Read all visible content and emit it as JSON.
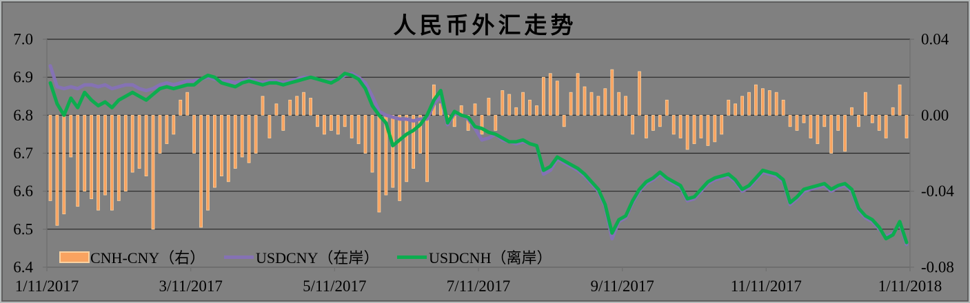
{
  "chart_data": {
    "type": "combo-bar-line",
    "title": "人民币外汇走势",
    "x_tick_labels": [
      "1/11/2017",
      "3/11/2017",
      "5/11/2017",
      "7/11/2017",
      "9/11/2017",
      "11/11/2017",
      "1/11/2018"
    ],
    "left_axis": {
      "min": 6.4,
      "max": 7.0,
      "tick_labels": [
        "7.0",
        "6.9",
        "6.8",
        "6.7",
        "6.6",
        "6.5",
        "6.4"
      ],
      "tick_values": [
        7.0,
        6.9,
        6.8,
        6.7,
        6.6,
        6.5,
        6.4
      ]
    },
    "right_axis": {
      "min": -0.08,
      "max": 0.04,
      "tick_labels": [
        "0.04",
        "0.00",
        "-0.04",
        "-0.08"
      ],
      "tick_values": [
        0.04,
        0.0,
        -0.04,
        -0.08
      ]
    },
    "grid": "horizontal",
    "legend_position": "inside-bottom-left",
    "series": [
      {
        "name": "CNH-CNY（右）",
        "type": "bar",
        "axis": "right",
        "values": [
          -0.045,
          -0.058,
          -0.052,
          -0.022,
          -0.048,
          -0.04,
          -0.044,
          -0.05,
          -0.042,
          -0.05,
          -0.045,
          -0.04,
          -0.03,
          -0.028,
          -0.032,
          -0.06,
          -0.02,
          -0.015,
          -0.01,
          0.008,
          0.012,
          -0.02,
          -0.059,
          -0.05,
          -0.038,
          -0.032,
          -0.035,
          -0.028,
          -0.022,
          -0.025,
          -0.02,
          0.01,
          -0.012,
          0.006,
          -0.008,
          0.008,
          0.01,
          0.012,
          0.009,
          -0.006,
          -0.01,
          -0.008,
          -0.01,
          -0.006,
          -0.012,
          -0.015,
          -0.02,
          -0.03,
          -0.051,
          -0.042,
          -0.038,
          -0.045,
          -0.035,
          -0.028,
          -0.02,
          -0.035,
          0.016,
          0.006,
          -0.005,
          -0.006,
          0.005,
          -0.008,
          0.006,
          -0.01,
          0.009,
          -0.008,
          0.013,
          0.011,
          0.004,
          0.012,
          0.008,
          0.005,
          0.02,
          0.022,
          0.018,
          -0.006,
          0.012,
          0.022,
          0.015,
          0.012,
          0.01,
          0.014,
          0.024,
          0.012,
          0.01,
          -0.01,
          0.023,
          -0.012,
          -0.008,
          -0.006,
          0.008,
          -0.01,
          -0.012,
          -0.018,
          -0.015,
          -0.012,
          -0.016,
          -0.014,
          -0.01,
          0.008,
          0.006,
          0.01,
          0.012,
          0.016,
          0.014,
          0.013,
          0.012,
          0.008,
          -0.006,
          -0.008,
          -0.004,
          -0.012,
          -0.015,
          -0.006,
          -0.02,
          -0.008,
          -0.019,
          0.004,
          -0.006,
          0.012,
          -0.004,
          -0.008,
          -0.012,
          0.004,
          0.016,
          -0.012
        ]
      },
      {
        "name": "USDCNY（在岸）",
        "type": "line",
        "axis": "left",
        "values": [
          6.93,
          6.875,
          6.87,
          6.875,
          6.87,
          6.88,
          6.88,
          6.875,
          6.88,
          6.87,
          6.875,
          6.88,
          6.88,
          6.87,
          6.865,
          6.87,
          6.88,
          6.885,
          6.88,
          6.885,
          6.89,
          6.89,
          6.895,
          6.9,
          6.895,
          6.89,
          6.89,
          6.885,
          6.89,
          6.895,
          6.89,
          6.885,
          6.89,
          6.89,
          6.885,
          6.89,
          6.895,
          6.9,
          6.9,
          6.895,
          6.89,
          6.89,
          6.895,
          6.905,
          6.91,
          6.9,
          6.885,
          6.85,
          6.81,
          6.8,
          6.795,
          6.79,
          6.79,
          6.785,
          6.79,
          6.79,
          6.83,
          6.85,
          6.775,
          6.805,
          6.8,
          6.79,
          6.765,
          6.735,
          6.74,
          6.75,
          6.735,
          6.73,
          6.725,
          6.73,
          6.725,
          6.72,
          6.645,
          6.655,
          6.685,
          6.675,
          6.665,
          6.655,
          6.64,
          6.62,
          6.6,
          6.56,
          6.475,
          6.52,
          6.53,
          6.57,
          6.6,
          6.62,
          6.63,
          6.645,
          6.63,
          6.62,
          6.61,
          6.575,
          6.58,
          6.6,
          6.62,
          6.63,
          6.635,
          6.64,
          6.625,
          6.6,
          6.61,
          6.63,
          6.65,
          6.645,
          6.64,
          6.625,
          6.565,
          6.58,
          6.6,
          6.605,
          6.61,
          6.615,
          6.6,
          6.61,
          6.615,
          6.6,
          6.55,
          6.53,
          6.52,
          6.5,
          6.48,
          6.49,
          6.515,
          6.46
        ]
      },
      {
        "name": "USDCNH（离岸）",
        "type": "line",
        "axis": "left",
        "values": [
          6.885,
          6.83,
          6.8,
          6.845,
          6.82,
          6.86,
          6.84,
          6.825,
          6.835,
          6.82,
          6.84,
          6.85,
          6.86,
          6.85,
          6.84,
          6.855,
          6.87,
          6.875,
          6.87,
          6.875,
          6.88,
          6.88,
          6.895,
          6.905,
          6.9,
          6.885,
          6.88,
          6.875,
          6.885,
          6.89,
          6.885,
          6.88,
          6.885,
          6.885,
          6.88,
          6.885,
          6.89,
          6.895,
          6.9,
          6.895,
          6.89,
          6.885,
          6.895,
          6.91,
          6.905,
          6.895,
          6.87,
          6.825,
          6.8,
          6.78,
          6.72,
          6.735,
          6.75,
          6.76,
          6.775,
          6.8,
          6.84,
          6.865,
          6.78,
          6.81,
          6.8,
          6.795,
          6.77,
          6.765,
          6.755,
          6.75,
          6.74,
          6.73,
          6.73,
          6.735,
          6.725,
          6.72,
          6.655,
          6.665,
          6.69,
          6.68,
          6.67,
          6.66,
          6.645,
          6.625,
          6.605,
          6.565,
          6.49,
          6.525,
          6.535,
          6.575,
          6.605,
          6.625,
          6.635,
          6.65,
          6.635,
          6.625,
          6.615,
          6.58,
          6.585,
          6.605,
          6.625,
          6.635,
          6.64,
          6.645,
          6.63,
          6.605,
          6.615,
          6.635,
          6.655,
          6.65,
          6.645,
          6.63,
          6.57,
          6.585,
          6.605,
          6.61,
          6.615,
          6.62,
          6.605,
          6.615,
          6.62,
          6.605,
          6.555,
          6.535,
          6.525,
          6.505,
          6.475,
          6.485,
          6.52,
          6.465
        ]
      }
    ]
  },
  "colors": {
    "background": "#808080",
    "grid": "#262626",
    "axis": "#707070",
    "text": "#000000",
    "bar_fill": "#F9A360",
    "bar_border": "#FBD2A0",
    "usdcny_line": "#8572B4",
    "usdcnh_line": "#0CAD4F",
    "frame_light": "#B4B8B8",
    "frame_dark": "#5E5E5E"
  }
}
